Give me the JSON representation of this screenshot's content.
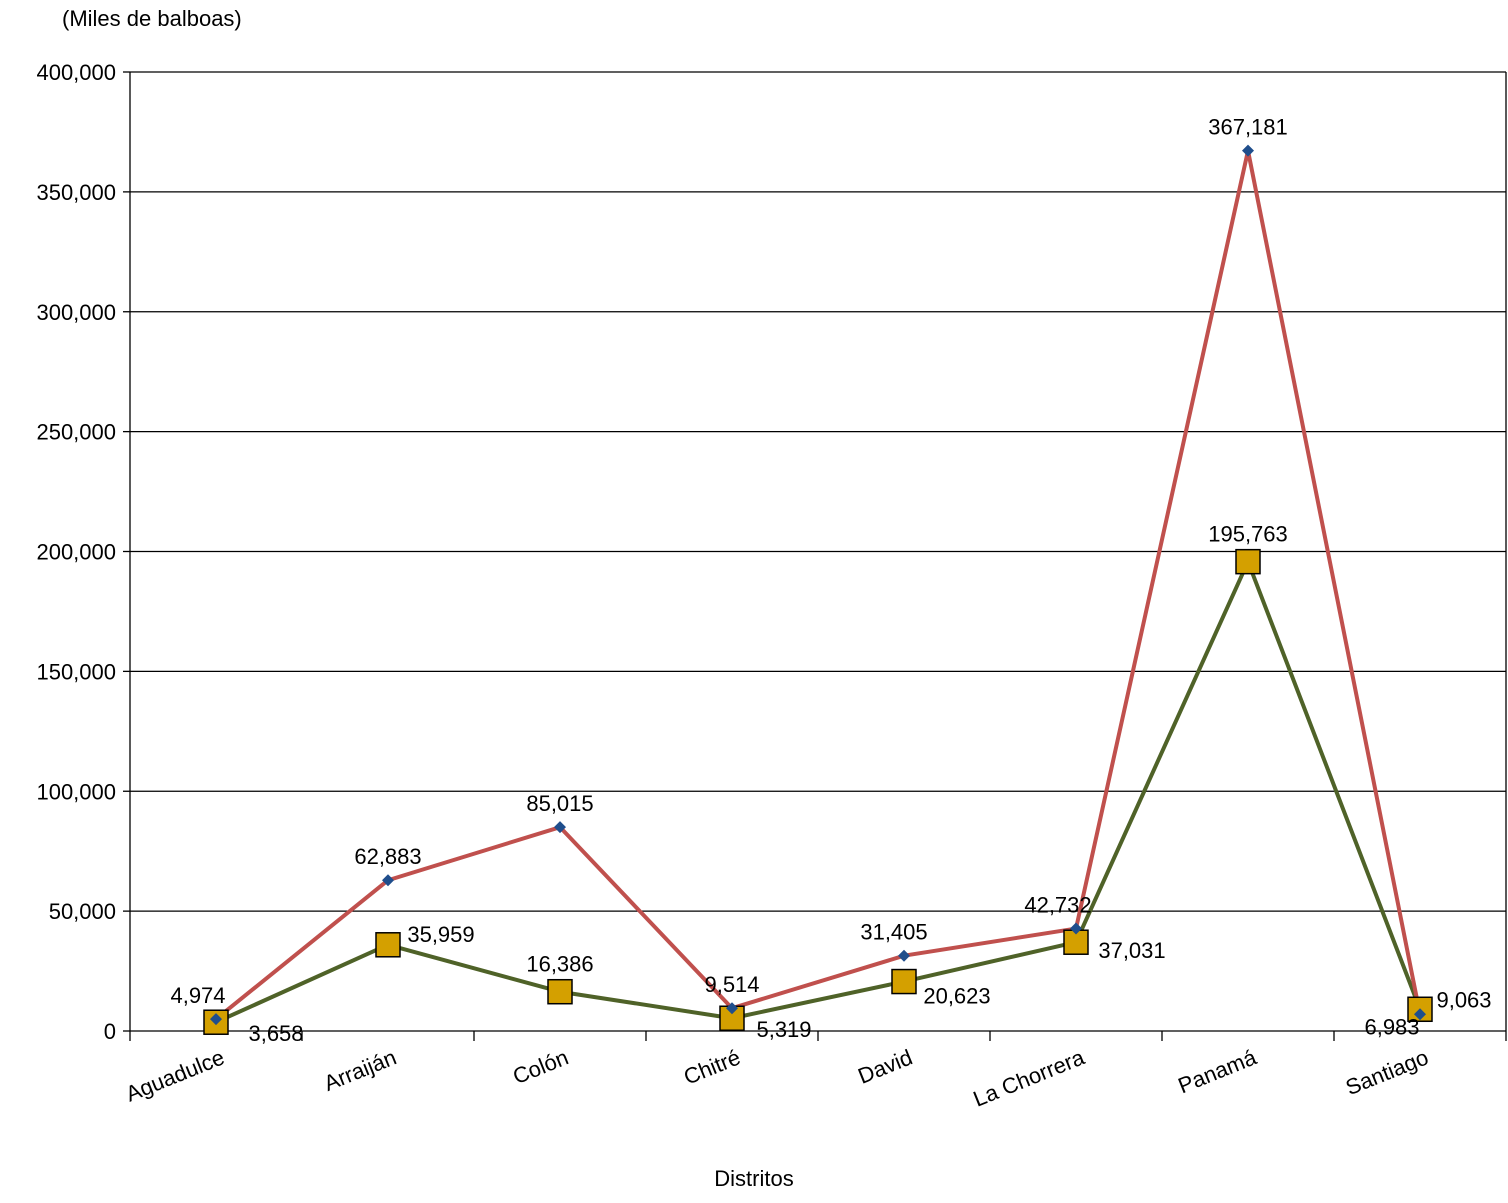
{
  "unit_label": "(Miles de balboas)",
  "chart_data": {
    "type": "line",
    "title": "",
    "xlabel": "Distritos",
    "ylabel": "(Miles de balboas)",
    "ylim": [
      0,
      400000
    ],
    "yticks": [
      0,
      50000,
      100000,
      150000,
      200000,
      250000,
      300000,
      350000,
      400000
    ],
    "ytick_labels": [
      "0",
      "50,000",
      "100,000",
      "150,000",
      "200,000",
      "250,000",
      "300,000",
      "350,000",
      "400,000"
    ],
    "grid": true,
    "legend": "none",
    "categories": [
      "Aguadulce",
      "Arraiján",
      "Colón",
      "Chitré",
      "David",
      "La Chorrera",
      "Panamá",
      "Santiago"
    ],
    "series": [
      {
        "values": [
          4974,
          62883,
          85015,
          9514,
          31405,
          42732,
          367181,
          6983
        ],
        "labels": [
          "4,974",
          "62,883",
          "85,015",
          "9,514",
          "31,405",
          "42,732",
          "367,181",
          "6,983"
        ],
        "line_color": "#C0504D",
        "marker": "diamond",
        "marker_color": "#1F4E8C"
      },
      {
        "values": [
          3658,
          35959,
          16386,
          5319,
          20623,
          37031,
          195763,
          9063
        ],
        "labels": [
          "3,658",
          "35,959",
          "16,386",
          "5,319",
          "20,623",
          "37,031",
          "195,763",
          "9,063"
        ],
        "line_color": "#4F6228",
        "marker": "square",
        "marker_color": "#D4A000"
      }
    ]
  }
}
